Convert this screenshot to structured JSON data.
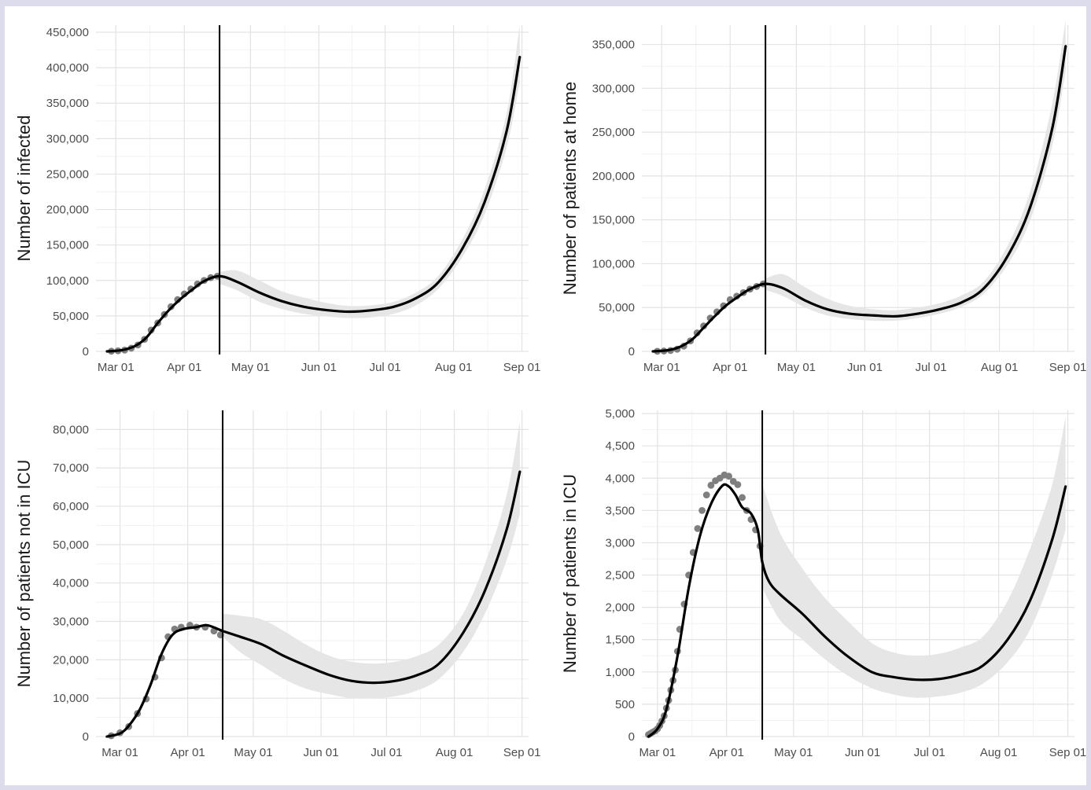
{
  "chart_data": [
    {
      "type": "line",
      "ylabel": "Number of infected",
      "xlabel": "",
      "x_ticks": [
        "Mar 01",
        "Apr 01",
        "May 01",
        "Jun 01",
        "Jul 01",
        "Aug 01",
        "Sep 01"
      ],
      "x_range": [
        "2020-02-21",
        "2020-09-04"
      ],
      "y_ticks": [
        "0",
        "50,000",
        "100,000",
        "150,000",
        "200,000",
        "250,000",
        "300,000",
        "350,000",
        "400,000",
        "450,000"
      ],
      "y_tick_values": [
        0,
        50000,
        100000,
        150000,
        200000,
        250000,
        300000,
        350000,
        400000,
        450000
      ],
      "ylim": [
        0,
        460000
      ],
      "vline_date": "2020-04-17",
      "grid": true,
      "series": [
        {
          "kind": "observed_points",
          "x": [
            "2020-02-28",
            "2020-03-02",
            "2020-03-05",
            "2020-03-08",
            "2020-03-11",
            "2020-03-14",
            "2020-03-17",
            "2020-03-20",
            "2020-03-23",
            "2020-03-26",
            "2020-03-29",
            "2020-04-01",
            "2020-04-04",
            "2020-04-07",
            "2020-04-10",
            "2020-04-13",
            "2020-04-16"
          ],
          "y": [
            200,
            800,
            1800,
            4500,
            9000,
            17000,
            30000,
            40000,
            52000,
            63000,
            73000,
            81000,
            88000,
            95000,
            100000,
            104000,
            106000
          ]
        },
        {
          "kind": "fitted_line",
          "x": [
            "2020-02-26",
            "2020-03-01",
            "2020-03-05",
            "2020-03-10",
            "2020-03-15",
            "2020-03-20",
            "2020-03-25",
            "2020-03-30",
            "2020-04-05",
            "2020-04-10",
            "2020-04-17",
            "2020-04-25",
            "2020-05-05",
            "2020-05-15",
            "2020-05-25",
            "2020-06-05",
            "2020-06-15",
            "2020-06-25",
            "2020-07-05",
            "2020-07-15",
            "2020-07-25",
            "2020-08-05",
            "2020-08-15",
            "2020-08-25",
            "2020-08-31"
          ],
          "y": [
            0,
            800,
            2500,
            8000,
            20000,
            40000,
            58000,
            73000,
            88000,
            99000,
            106000,
            98000,
            83000,
            71000,
            63000,
            58000,
            56000,
            58000,
            63000,
            75000,
            97000,
            145000,
            210000,
            310000,
            415000
          ]
        },
        {
          "kind": "ci_band",
          "x": [
            "2020-04-17",
            "2020-04-25",
            "2020-05-05",
            "2020-05-15",
            "2020-05-25",
            "2020-06-05",
            "2020-06-15",
            "2020-06-25",
            "2020-07-05",
            "2020-07-15",
            "2020-07-25",
            "2020-08-05",
            "2020-08-15",
            "2020-08-25",
            "2020-08-31"
          ],
          "lower": [
            95000,
            86000,
            70000,
            60000,
            53000,
            49000,
            47000,
            48000,
            53000,
            65000,
            88000,
            133000,
            193000,
            287000,
            380000
          ],
          "upper": [
            112000,
            114000,
            100000,
            85000,
            76000,
            68000,
            64000,
            65000,
            70000,
            83000,
            106000,
            158000,
            228000,
            335000,
            460000
          ]
        }
      ]
    },
    {
      "type": "line",
      "ylabel": "Number of patients at home",
      "xlabel": "",
      "x_ticks": [
        "Mar 01",
        "Apr 01",
        "May 01",
        "Jun 01",
        "Jul 01",
        "Aug 01",
        "Sep 01"
      ],
      "x_range": [
        "2020-02-21",
        "2020-09-04"
      ],
      "y_ticks": [
        "0",
        "50,000",
        "100,000",
        "150,000",
        "200,000",
        "250,000",
        "300,000",
        "350,000"
      ],
      "y_tick_values": [
        0,
        50000,
        100000,
        150000,
        200000,
        250000,
        300000,
        350000
      ],
      "ylim": [
        0,
        372000
      ],
      "vline_date": "2020-04-17",
      "grid": true,
      "series": [
        {
          "kind": "observed_points",
          "x": [
            "2020-02-28",
            "2020-03-02",
            "2020-03-05",
            "2020-03-08",
            "2020-03-11",
            "2020-03-14",
            "2020-03-17",
            "2020-03-20",
            "2020-03-23",
            "2020-03-26",
            "2020-03-29",
            "2020-04-01",
            "2020-04-04",
            "2020-04-07",
            "2020-04-10",
            "2020-04-13",
            "2020-04-16"
          ],
          "y": [
            100,
            400,
            1000,
            2500,
            6000,
            12000,
            21000,
            29000,
            38000,
            45000,
            52000,
            59000,
            63000,
            67000,
            71000,
            74000,
            77000
          ]
        },
        {
          "kind": "fitted_line",
          "x": [
            "2020-02-26",
            "2020-03-01",
            "2020-03-05",
            "2020-03-10",
            "2020-03-15",
            "2020-03-20",
            "2020-03-25",
            "2020-03-30",
            "2020-04-05",
            "2020-04-10",
            "2020-04-17",
            "2020-04-25",
            "2020-05-05",
            "2020-05-15",
            "2020-05-25",
            "2020-06-05",
            "2020-06-15",
            "2020-06-25",
            "2020-07-05",
            "2020-07-15",
            "2020-07-25",
            "2020-08-05",
            "2020-08-15",
            "2020-08-25",
            "2020-08-31"
          ],
          "y": [
            0,
            600,
            1800,
            6000,
            14000,
            27000,
            40000,
            52000,
            63000,
            71000,
            77000,
            72000,
            58000,
            48000,
            43000,
            41000,
            40000,
            43000,
            48000,
            56000,
            72000,
            110000,
            165000,
            255000,
            348000
          ]
        },
        {
          "kind": "ci_band",
          "x": [
            "2020-04-17",
            "2020-04-25",
            "2020-05-05",
            "2020-05-15",
            "2020-05-25",
            "2020-06-05",
            "2020-06-15",
            "2020-06-25",
            "2020-07-05",
            "2020-07-15",
            "2020-07-25",
            "2020-08-05",
            "2020-08-15",
            "2020-08-25",
            "2020-08-31"
          ],
          "lower": [
            70000,
            63000,
            50000,
            41000,
            37000,
            35000,
            35000,
            38000,
            43000,
            51000,
            66000,
            100000,
            150000,
            235000,
            320000
          ],
          "upper": [
            83000,
            88000,
            73000,
            60000,
            52000,
            48000,
            47000,
            50000,
            55000,
            64000,
            80000,
            122000,
            183000,
            283000,
            378000
          ]
        }
      ]
    },
    {
      "type": "line",
      "ylabel": "Number of patients not in ICU",
      "xlabel": "",
      "x_ticks": [
        "Mar 01",
        "Apr 01",
        "May 01",
        "Jun 01",
        "Jul 01",
        "Aug 01",
        "Sep 01"
      ],
      "x_range": [
        "2020-02-19",
        "2020-09-04"
      ],
      "y_ticks": [
        "0",
        "10,000",
        "20,000",
        "30,000",
        "40,000",
        "50,000",
        "60,000",
        "70,000",
        "80,000"
      ],
      "y_tick_values": [
        0,
        10000,
        20000,
        30000,
        40000,
        50000,
        60000,
        70000,
        80000
      ],
      "ylim": [
        0,
        85000
      ],
      "vline_date": "2020-04-17",
      "grid": true,
      "series": [
        {
          "kind": "observed_points",
          "x": [
            "2020-02-26",
            "2020-03-01",
            "2020-03-05",
            "2020-03-09",
            "2020-03-13",
            "2020-03-17",
            "2020-03-20",
            "2020-03-23",
            "2020-03-26",
            "2020-03-29",
            "2020-04-02",
            "2020-04-05",
            "2020-04-09",
            "2020-04-13",
            "2020-04-16"
          ],
          "y": [
            200,
            1000,
            2600,
            6000,
            9800,
            15500,
            20500,
            26000,
            28000,
            28500,
            29000,
            28500,
            28500,
            27500,
            26500
          ]
        },
        {
          "kind": "fitted_line",
          "x": [
            "2020-02-24",
            "2020-03-01",
            "2020-03-05",
            "2020-03-10",
            "2020-03-15",
            "2020-03-20",
            "2020-03-25",
            "2020-03-30",
            "2020-04-05",
            "2020-04-10",
            "2020-04-17",
            "2020-04-25",
            "2020-05-05",
            "2020-05-15",
            "2020-05-25",
            "2020-06-05",
            "2020-06-15",
            "2020-06-25",
            "2020-07-05",
            "2020-07-15",
            "2020-07-25",
            "2020-08-05",
            "2020-08-15",
            "2020-08-25",
            "2020-08-31"
          ],
          "y": [
            0,
            800,
            2800,
            7000,
            13500,
            21500,
            26500,
            28000,
            28500,
            29000,
            27500,
            26000,
            24000,
            21000,
            18500,
            16000,
            14500,
            14000,
            14500,
            16000,
            19000,
            27000,
            38000,
            54000,
            69000
          ]
        },
        {
          "kind": "ci_band",
          "x": [
            "2020-04-17",
            "2020-04-25",
            "2020-05-05",
            "2020-05-15",
            "2020-05-25",
            "2020-06-05",
            "2020-06-15",
            "2020-06-25",
            "2020-07-05",
            "2020-07-15",
            "2020-07-25",
            "2020-08-05",
            "2020-08-15",
            "2020-08-25",
            "2020-08-31"
          ],
          "lower": [
            26000,
            22000,
            18500,
            15000,
            12500,
            11000,
            10000,
            10000,
            10500,
            12000,
            15000,
            22000,
            32000,
            46000,
            58000
          ],
          "upper": [
            32000,
            31500,
            30500,
            27500,
            24000,
            21000,
            19500,
            19000,
            19500,
            21000,
            24000,
            32000,
            45000,
            63000,
            82000
          ]
        }
      ]
    },
    {
      "type": "line",
      "ylabel": "Number of patients in ICU",
      "xlabel": "",
      "x_ticks": [
        "Mar 01",
        "Apr 01",
        "May 01",
        "Jun 01",
        "Jul 01",
        "Aug 01",
        "Sep 01"
      ],
      "x_range": [
        "2020-02-23",
        "2020-09-04"
      ],
      "y_ticks": [
        "0",
        "500",
        "1,000",
        "1,500",
        "2,000",
        "2,500",
        "3,000",
        "3,500",
        "4,000",
        "4,500",
        "5,000"
      ],
      "y_tick_values": [
        0,
        500,
        1000,
        1500,
        2000,
        2500,
        3000,
        3500,
        4000,
        4500,
        5000
      ],
      "ylim": [
        0,
        5050
      ],
      "vline_date": "2020-04-17",
      "grid": true,
      "series": [
        {
          "kind": "observed_points",
          "x": [
            "2020-02-26",
            "2020-02-27",
            "2020-02-28",
            "2020-02-29",
            "2020-03-01",
            "2020-03-02",
            "2020-03-03",
            "2020-03-04",
            "2020-03-05",
            "2020-03-06",
            "2020-03-07",
            "2020-03-08",
            "2020-03-09",
            "2020-03-10",
            "2020-03-11",
            "2020-03-13",
            "2020-03-15",
            "2020-03-17",
            "2020-03-19",
            "2020-03-21",
            "2020-03-23",
            "2020-03-25",
            "2020-03-27",
            "2020-03-29",
            "2020-03-31",
            "2020-04-02",
            "2020-04-04",
            "2020-04-06",
            "2020-04-08",
            "2020-04-10",
            "2020-04-12",
            "2020-04-14",
            "2020-04-16"
          ],
          "y": [
            30,
            50,
            70,
            90,
            120,
            170,
            240,
            320,
            440,
            560,
            720,
            870,
            1030,
            1320,
            1660,
            2050,
            2500,
            2850,
            3220,
            3500,
            3740,
            3890,
            3960,
            4000,
            4050,
            4030,
            3950,
            3900,
            3700,
            3500,
            3360,
            3200,
            2950
          ]
        },
        {
          "kind": "fitted_line",
          "x": [
            "2020-02-26",
            "2020-03-01",
            "2020-03-05",
            "2020-03-10",
            "2020-03-15",
            "2020-03-20",
            "2020-03-25",
            "2020-03-30",
            "2020-04-02",
            "2020-04-05",
            "2020-04-08",
            "2020-04-12",
            "2020-04-15",
            "2020-04-17",
            "2020-04-20",
            "2020-04-25",
            "2020-05-05",
            "2020-05-15",
            "2020-05-25",
            "2020-06-05",
            "2020-06-15",
            "2020-06-25",
            "2020-07-05",
            "2020-07-15",
            "2020-07-25",
            "2020-08-05",
            "2020-08-15",
            "2020-08-25",
            "2020-08-31"
          ],
          "y": [
            0,
            120,
            420,
            1250,
            2300,
            3100,
            3600,
            3880,
            3870,
            3740,
            3550,
            3450,
            3200,
            2700,
            2400,
            2200,
            1900,
            1550,
            1250,
            1000,
            920,
            880,
            890,
            960,
            1100,
            1500,
            2100,
            3050,
            3870
          ]
        },
        {
          "kind": "ci_band",
          "x": [
            "2020-04-17",
            "2020-04-25",
            "2020-05-05",
            "2020-05-15",
            "2020-05-25",
            "2020-06-05",
            "2020-06-15",
            "2020-06-25",
            "2020-07-05",
            "2020-07-15",
            "2020-07-25",
            "2020-08-05",
            "2020-08-15",
            "2020-08-25",
            "2020-08-31"
          ],
          "lower": [
            2300,
            1800,
            1500,
            1200,
            950,
            750,
            650,
            600,
            620,
            680,
            820,
            1150,
            1650,
            2500,
            3200
          ],
          "upper": [
            3900,
            3150,
            2600,
            2150,
            1800,
            1450,
            1300,
            1250,
            1280,
            1380,
            1550,
            2100,
            2900,
            3900,
            4950
          ]
        }
      ]
    }
  ]
}
